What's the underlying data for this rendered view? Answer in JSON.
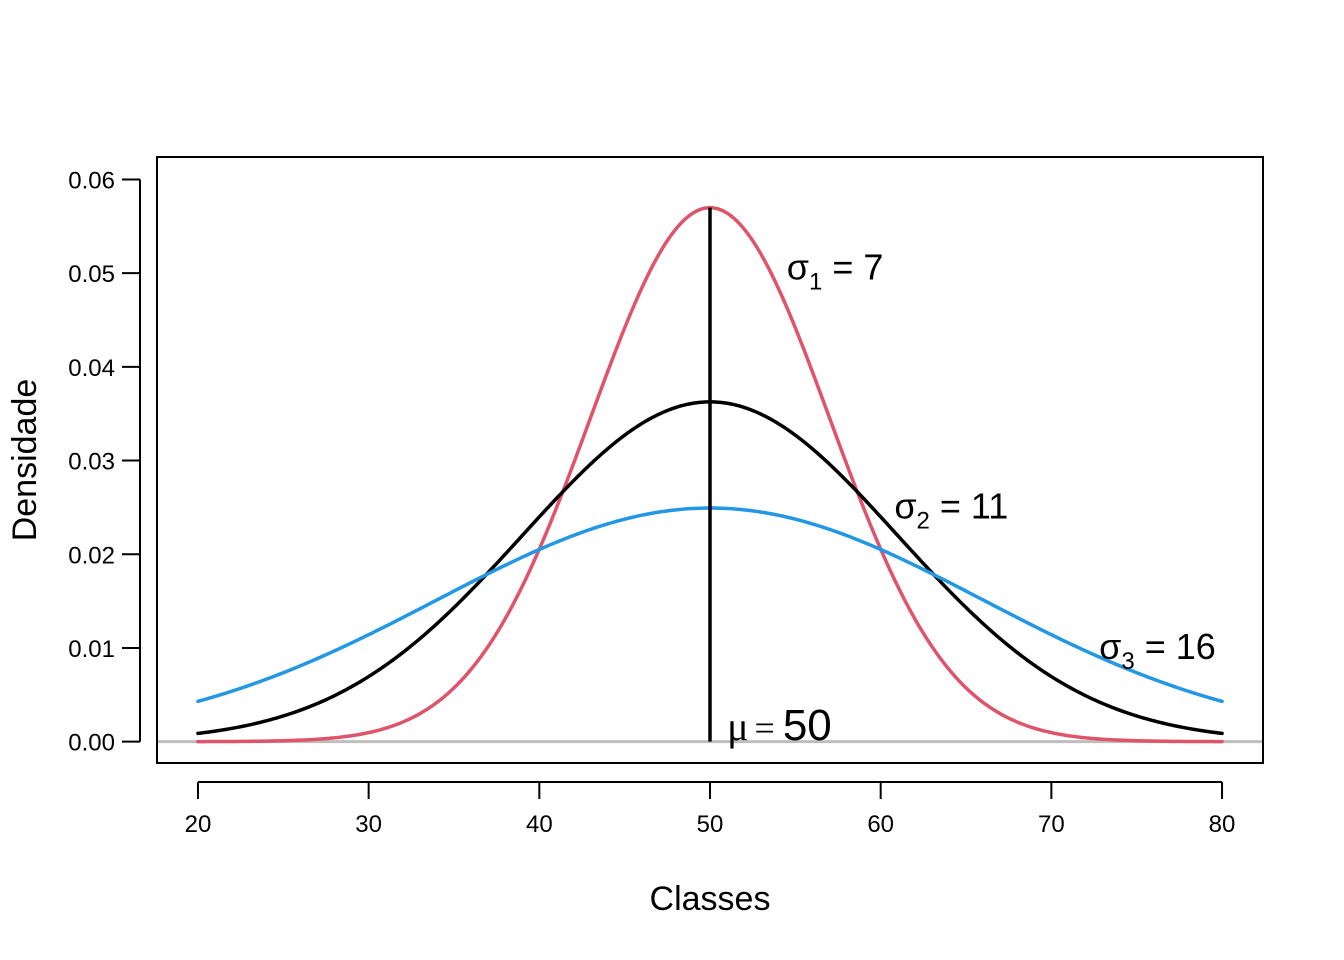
{
  "chart_data": {
    "type": "line",
    "xlabel": "Classes",
    "ylabel": "Densidade",
    "xlim": [
      17.6,
      82.4
    ],
    "ylim": [
      -0.00228,
      0.0624
    ],
    "x_ticks": [
      "20",
      "30",
      "40",
      "50",
      "60",
      "70",
      "80"
    ],
    "y_ticks": [
      "0.00",
      "0.01",
      "0.02",
      "0.03",
      "0.04",
      "0.05",
      "0.06"
    ],
    "grid": false,
    "legend": "none",
    "mean": 50,
    "x_range": [
      20,
      80
    ],
    "series": [
      {
        "sd": 7,
        "color": "#DF536B"
      },
      {
        "sd": 11,
        "color": "#000000"
      },
      {
        "sd": 16,
        "color": "#2297E6"
      }
    ],
    "annotations": [
      {
        "sigma": "σ",
        "index": "1",
        "text": " = 7",
        "x": 54.5,
        "y": 0.0493
      },
      {
        "sigma": "σ",
        "index": "2",
        "text": " = 11",
        "x": 60.8,
        "y": 0.0238
      },
      {
        "sigma": "σ",
        "index": "3",
        "text": " = 16",
        "x": 72.8,
        "y": 0.0088
      }
    ],
    "mu_label": {
      "symbol": "μ",
      "eq": "=",
      "value": "50",
      "x": 51.0,
      "y": 0.0002
    },
    "baseline_color": "#BEBEBE",
    "mean_line_color": "#000000"
  }
}
